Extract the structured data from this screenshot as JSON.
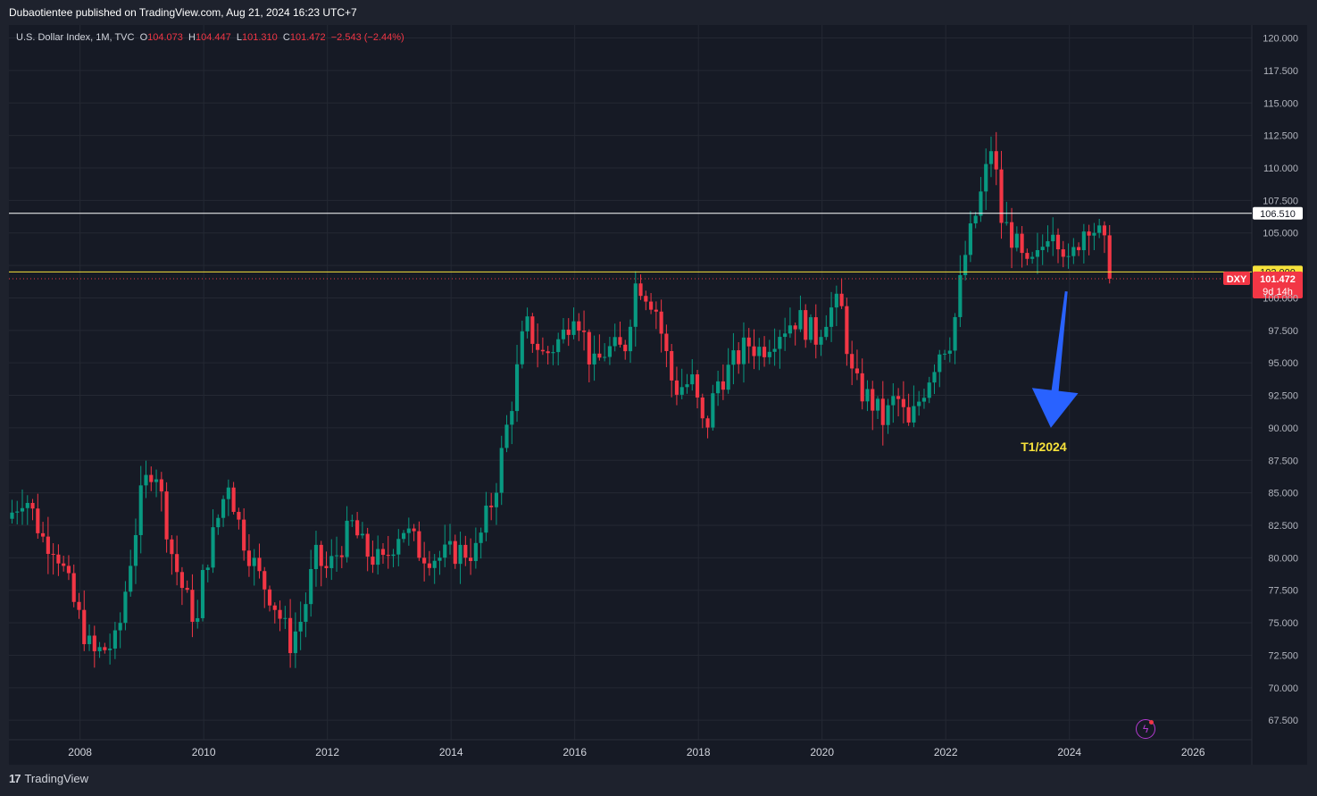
{
  "header": {
    "publisher": "Dubaotientee published on TradingView.com, Aug 21, 2024 16:23 UTC+7"
  },
  "legend": {
    "symbol": "U.S. Dollar Index, 1M, TVC",
    "o_label": "O",
    "o_value": "104.073",
    "h_label": "H",
    "h_value": "104.447",
    "l_label": "L",
    "l_value": "101.310",
    "c_label": "C",
    "c_value": "101.472",
    "change": "−2.543 (−2.44%)"
  },
  "footer": {
    "brand": "TradingView"
  },
  "colors": {
    "up": "#089981",
    "down": "#f23645",
    "background": "#161a25",
    "resistance_line": "#ffffff",
    "support_line": "#f7e23b",
    "arrow": "#2962ff",
    "annotation_text": "#f7e23b"
  },
  "chart_data": {
    "type": "candlestick",
    "xlim": [
      2006.85,
      2026.95
    ],
    "ylim": [
      66.0,
      121.0
    ],
    "y_ticks": [
      "67.500",
      "70.000",
      "72.500",
      "75.000",
      "77.500",
      "80.000",
      "82.500",
      "85.000",
      "87.500",
      "90.000",
      "92.500",
      "95.000",
      "97.500",
      "100.000",
      "102.500",
      "105.000",
      "107.500",
      "110.000",
      "112.500",
      "115.000",
      "117.500",
      "120.000"
    ],
    "x_ticks": [
      "2008",
      "2010",
      "2012",
      "2014",
      "2016",
      "2018",
      "2020",
      "2022",
      "2024",
      "2026"
    ],
    "horizontal_lines": [
      {
        "value": 106.51,
        "label": "106.510",
        "color": "#ffffff"
      },
      {
        "value": 102.0,
        "label": "102.000",
        "color": "#f7e23b"
      }
    ],
    "price_tag": {
      "symbol": "DXY",
      "value": "101.472",
      "countdown": "9d 14h"
    },
    "annotation": {
      "text": "T1/2024",
      "arrow_from": [
        2023.95,
        100.5
      ],
      "arrow_to": [
        2023.7,
        90.0
      ]
    },
    "anchors": [
      [
        2006.9,
        83.5
      ],
      [
        2007.1,
        85.0
      ],
      [
        2007.4,
        81.5
      ],
      [
        2007.6,
        81.0
      ],
      [
        2007.9,
        76.5
      ],
      [
        2008.2,
        72.5
      ],
      [
        2008.6,
        73.5
      ],
      [
        2008.8,
        79.5
      ],
      [
        2009.0,
        85.0
      ],
      [
        2009.2,
        87.5
      ],
      [
        2009.5,
        80.0
      ],
      [
        2009.7,
        77.0
      ],
      [
        2009.9,
        75.0
      ],
      [
        2010.0,
        79.0
      ],
      [
        2010.4,
        86.0
      ],
      [
        2010.6,
        82.0
      ],
      [
        2010.9,
        78.5
      ],
      [
        2011.1,
        77.0
      ],
      [
        2011.4,
        73.5
      ],
      [
        2011.6,
        75.5
      ],
      [
        2011.8,
        80.0
      ],
      [
        2012.0,
        79.0
      ],
      [
        2012.4,
        82.5
      ],
      [
        2012.6,
        80.5
      ],
      [
        2012.9,
        79.5
      ],
      [
        2013.2,
        82.5
      ],
      [
        2013.5,
        80.5
      ],
      [
        2013.8,
        80.0
      ],
      [
        2014.1,
        80.5
      ],
      [
        2014.4,
        80.5
      ],
      [
        2014.7,
        85.0
      ],
      [
        2015.0,
        92.5
      ],
      [
        2015.2,
        98.0
      ],
      [
        2015.5,
        95.5
      ],
      [
        2015.8,
        97.0
      ],
      [
        2016.0,
        99.5
      ],
      [
        2016.3,
        94.5
      ],
      [
        2016.5,
        96.0
      ],
      [
        2016.8,
        96.0
      ],
      [
        2017.0,
        101.5
      ],
      [
        2017.3,
        99.5
      ],
      [
        2017.6,
        93.0
      ],
      [
        2017.9,
        93.5
      ],
      [
        2018.1,
        89.5
      ],
      [
        2018.3,
        93.5
      ],
      [
        2018.5,
        94.5
      ],
      [
        2018.8,
        96.5
      ],
      [
        2019.0,
        96.0
      ],
      [
        2019.3,
        97.5
      ],
      [
        2019.6,
        98.5
      ],
      [
        2019.9,
        97.0
      ],
      [
        2020.1,
        99.0
      ],
      [
        2020.3,
        99.5
      ],
      [
        2020.5,
        93.5
      ],
      [
        2020.8,
        92.0
      ],
      [
        2021.0,
        90.5
      ],
      [
        2021.2,
        92.5
      ],
      [
        2021.4,
        90.0
      ],
      [
        2021.6,
        92.5
      ],
      [
        2021.9,
        96.0
      ],
      [
        2022.1,
        97.0
      ],
      [
        2022.3,
        103.0
      ],
      [
        2022.6,
        108.5
      ],
      [
        2022.75,
        112.0
      ],
      [
        2022.9,
        106.0
      ],
      [
        2023.1,
        104.5
      ],
      [
        2023.3,
        102.0
      ],
      [
        2023.5,
        103.0
      ],
      [
        2023.7,
        106.0
      ],
      [
        2023.9,
        104.0
      ],
      [
        2024.0,
        102.0
      ],
      [
        2024.1,
        104.0
      ],
      [
        2024.3,
        106.0
      ],
      [
        2024.55,
        104.3
      ],
      [
        2024.64,
        101.47
      ]
    ]
  }
}
